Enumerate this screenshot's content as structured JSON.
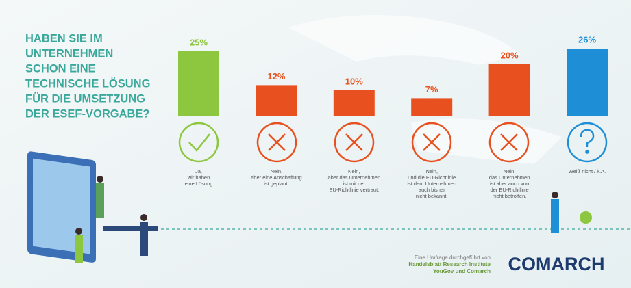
{
  "chart_data": {
    "type": "bar",
    "title": [
      "HABEN SIE IM",
      "UNTERNEHMEN",
      "SCHON EINE",
      "TECHNISCHE LÖSUNG",
      "FÜR DIE UMSETZUNG",
      "DER ESEF-VORGABE?"
    ],
    "categories": [
      [
        "Ja,",
        "wir haben",
        "eine Lösung"
      ],
      [
        "Nein,",
        "aber eine Anschaffung",
        "ist geplant."
      ],
      [
        "Nein,",
        "aber das Unternehmen",
        "ist mit der",
        "EU-Richtlinie vertraut."
      ],
      [
        "Nein,",
        "und die EU-Richtlinie",
        "ist dem Unternehmen",
        "auch bisher",
        "nicht bekannt."
      ],
      [
        "Nein,",
        "das Unternehmen",
        "ist aber auch von",
        "der EU-Richtlinie",
        "nicht betroffen."
      ],
      [
        "Weiß nicht / k.A."
      ]
    ],
    "values": [
      25,
      12,
      10,
      7,
      20,
      26
    ],
    "value_labels": [
      "25%",
      "12%",
      "10%",
      "7%",
      "20%",
      "26%"
    ],
    "colors": [
      "#8dc63f",
      "#e8511f",
      "#e8511f",
      "#e8511f",
      "#e8511f",
      "#1e8fd6"
    ],
    "source": [
      "Eine Umfrage durchgeführt von",
      "Handelsblatt Research Institute",
      "YouGov und Comarch"
    ],
    "logo": "COMARCH"
  }
}
